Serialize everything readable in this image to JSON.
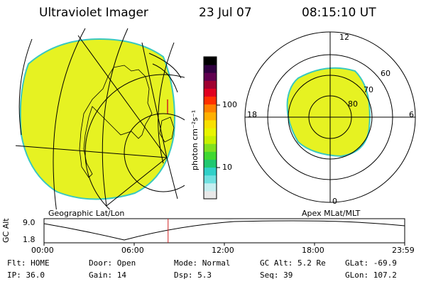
{
  "header": {
    "title": "Ultraviolet Imager",
    "date": "23 Jul 07",
    "time": "08:15:10 UT"
  },
  "geo_map": {
    "label": "Geographic Lat/Lon"
  },
  "polar_map": {
    "label": "Apex MLat/MLT",
    "mlt_labels": {
      "top": "12",
      "bottom": "0",
      "left": "18",
      "right": "6"
    },
    "lat_labels": [
      "60",
      "70",
      "80"
    ]
  },
  "colorbar": {
    "unit_label": "photon cm⁻²s⁻¹",
    "tick_labels": [
      "100",
      "10"
    ],
    "colors": [
      "#e8e8e8",
      "#c4eef0",
      "#6fe0e0",
      "#30d0c8",
      "#20c870",
      "#40d830",
      "#80e020",
      "#c8f000",
      "#e8f400",
      "#f8e000",
      "#ffb000",
      "#ff8000",
      "#ff3000",
      "#e00020",
      "#a00030",
      "#600050",
      "#300040",
      "#000000"
    ]
  },
  "altitude_plot": {
    "ylabel": "GC Alt",
    "y_ticks": [
      "9.0",
      "1.8"
    ],
    "x_ticks": [
      "00:00",
      "06:00",
      "12:00",
      "18:00",
      "23:59"
    ],
    "current_time_frac": 0.344
  },
  "status": {
    "row1": [
      {
        "label": "Flt:",
        "value": "HOME"
      },
      {
        "label": "Door:",
        "value": "Open"
      },
      {
        "label": "Mode:",
        "value": "Normal"
      },
      {
        "label": "GC Alt:",
        "value": "5.2 Re"
      },
      {
        "label": "GLat:",
        "value": "-69.9"
      }
    ],
    "row2": [
      {
        "label": "IP:",
        "value": "36.0"
      },
      {
        "label": "Gain:",
        "value": "14"
      },
      {
        "label": "Dsp:",
        "value": "5.3"
      },
      {
        "label": "Seq:",
        "value": "39"
      },
      {
        "label": "GLon:",
        "value": "107.2"
      }
    ]
  },
  "colors": {
    "fill": "#e6f222",
    "edge": "#38c8c0"
  }
}
